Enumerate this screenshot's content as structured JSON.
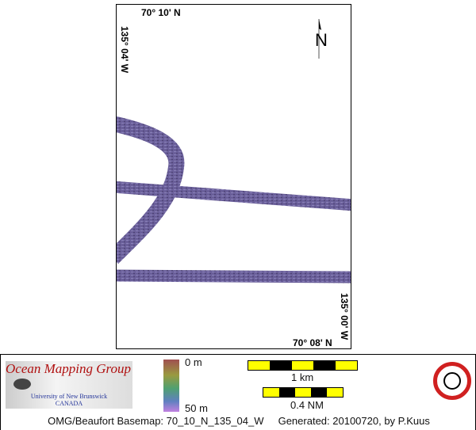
{
  "map": {
    "top_left_lat": "70° 10' N",
    "left_lon": "135° 04' W",
    "right_lon": "135° 00' W",
    "bottom_right_lat": "70° 08' N",
    "north_label": "N",
    "swath_color": "#6a5f9a"
  },
  "legend": {
    "org_name": "Ocean Mapping Group",
    "university": "University of New Brunswick",
    "country": "CANADA",
    "depth_min": "0 m",
    "depth_max": "50 m",
    "scale_km": "1 km",
    "scale_nm": "0.4 NM",
    "footer_basemap": "OMG/Beaufort Basemap: 70_10_N_135_04_W",
    "footer_generated": "Generated: 20100720, by P.Kuus",
    "scale_colors": [
      "#ffff00",
      "#000000"
    ]
  }
}
